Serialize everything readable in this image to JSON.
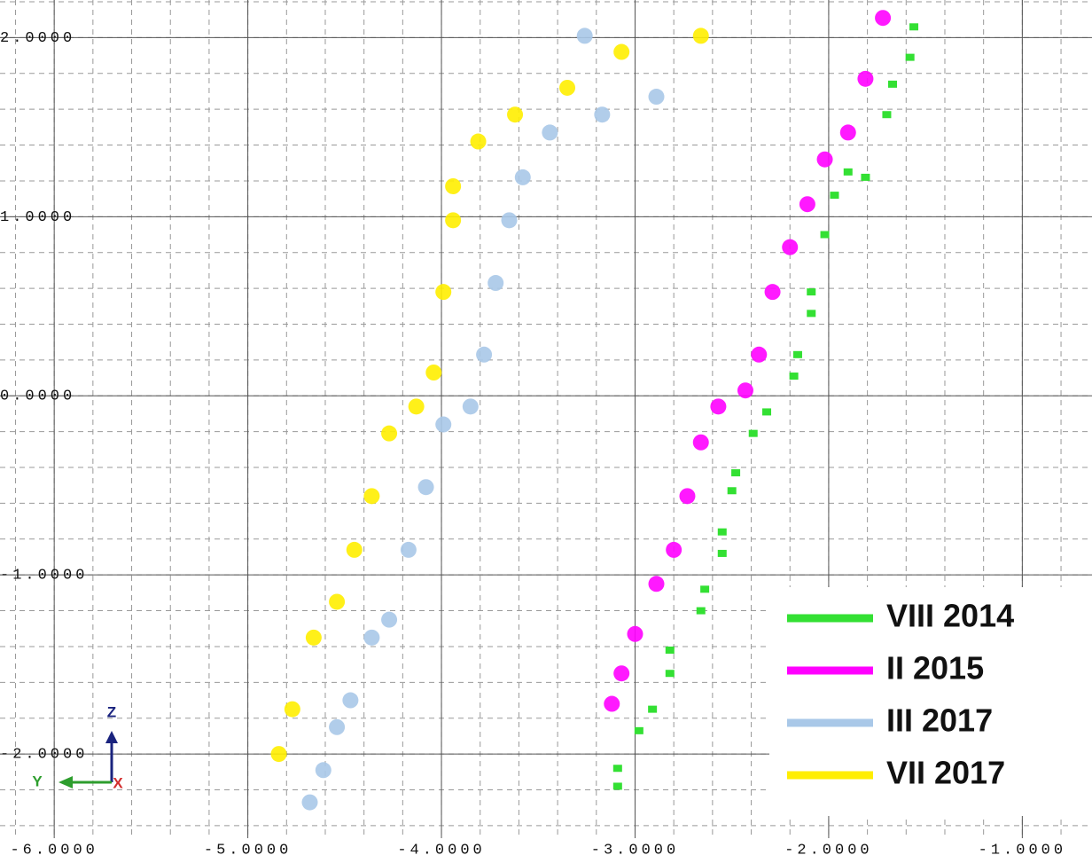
{
  "chart_data": {
    "type": "scatter",
    "xlim": [
      -6.28,
      -0.64
    ],
    "ylim": [
      -2.47,
      2.21
    ],
    "xticks": [
      {
        "value": -6,
        "label": "-6.0000"
      },
      {
        "value": -5,
        "label": "-5.0000"
      },
      {
        "value": -4,
        "label": "-4.0000"
      },
      {
        "value": -3,
        "label": "-3.0000"
      },
      {
        "value": -2,
        "label": "-2.0000"
      },
      {
        "value": -1,
        "label": "-1.0000"
      }
    ],
    "yticks": [
      {
        "value": -2,
        "label": "-2.0000"
      },
      {
        "value": -1,
        "label": "-1.0000"
      },
      {
        "value": 0,
        "label": "0.0000"
      },
      {
        "value": 1,
        "label": "1.0000"
      },
      {
        "value": 2,
        "label": "2.0000"
      }
    ],
    "grid": true,
    "legend": "lower right",
    "triad_labels": [
      "Z",
      "Y",
      "X"
    ],
    "series": [
      {
        "name": "VIII 2014",
        "color": "#33e033",
        "x": [
          -3.09,
          -3.09,
          -2.98,
          -2.91,
          -2.82,
          -2.82,
          -2.66,
          -2.64,
          -2.55,
          -2.55,
          -2.5,
          -2.48,
          -2.39,
          -2.32,
          -2.18,
          -2.16,
          -2.09,
          -2.09,
          -2.02,
          -1.97,
          -1.9,
          -1.81,
          -1.7,
          -1.67,
          -1.58,
          -1.56
        ],
        "values": [
          -2.18,
          -2.08,
          -1.87,
          -1.75,
          -1.55,
          -1.42,
          -1.2,
          -1.08,
          -0.88,
          -0.76,
          -0.53,
          -0.43,
          -0.21,
          -0.09,
          0.11,
          0.23,
          0.46,
          0.58,
          0.9,
          1.12,
          1.25,
          1.22,
          1.57,
          1.74,
          1.89,
          2.06
        ]
      },
      {
        "name": "II 2015",
        "color": "#ff00ff",
        "x": [
          -3.12,
          -3.07,
          -3.0,
          -2.89,
          -2.8,
          -2.73,
          -2.66,
          -2.57,
          -2.43,
          -2.36,
          -2.29,
          -2.2,
          -2.11,
          -2.02,
          -1.9,
          -1.81,
          -1.72
        ],
        "values": [
          -1.72,
          -1.55,
          -1.33,
          -1.05,
          -0.86,
          -0.56,
          -0.26,
          -0.06,
          0.03,
          0.23,
          0.58,
          0.83,
          1.07,
          1.32,
          1.47,
          1.77,
          2.11
        ]
      },
      {
        "name": "III 2017",
        "color": "#a9c8e8",
        "x": [
          -4.68,
          -4.61,
          -4.54,
          -4.47,
          -4.36,
          -4.27,
          -4.17,
          -4.08,
          -3.99,
          -3.85,
          -3.78,
          -3.72,
          -3.65,
          -3.58,
          -3.44,
          -3.17,
          -2.89,
          -3.26
        ],
        "values": [
          -2.27,
          -2.09,
          -1.85,
          -1.7,
          -1.35,
          -1.25,
          -0.86,
          -0.51,
          -0.16,
          -0.06,
          0.23,
          0.63,
          0.98,
          1.22,
          1.47,
          1.57,
          1.67,
          2.01
        ]
      },
      {
        "name": "VII 2017",
        "color": "#ffee00",
        "x": [
          -4.84,
          -4.77,
          -4.66,
          -4.54,
          -4.45,
          -4.36,
          -4.27,
          -4.13,
          -4.04,
          -3.99,
          -3.94,
          -3.94,
          -3.81,
          -3.62,
          -3.35,
          -3.07,
          -2.66
        ],
        "values": [
          -2.0,
          -1.75,
          -1.35,
          -1.15,
          -0.86,
          -0.56,
          -0.21,
          -0.06,
          0.13,
          0.58,
          0.98,
          1.17,
          1.42,
          1.57,
          1.72,
          1.92,
          2.01
        ]
      }
    ]
  }
}
